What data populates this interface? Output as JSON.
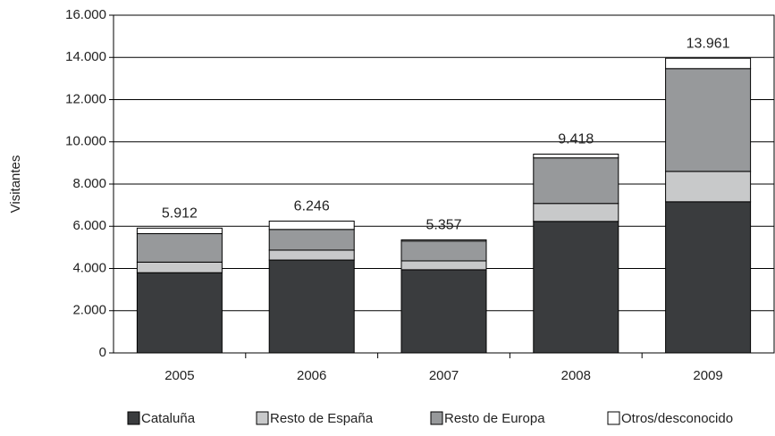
{
  "chart_data": {
    "type": "stacked_bar",
    "y_label": "Visitantes",
    "categories": [
      "2005",
      "2006",
      "2007",
      "2008",
      "2009"
    ],
    "series": [
      {
        "name": "Cataluña",
        "color": "#3a3c3e",
        "values": [
          3800,
          4400,
          3940,
          6230,
          7160
        ]
      },
      {
        "name": "Resto de España",
        "color": "#c8c9ca",
        "values": [
          500,
          470,
          420,
          850,
          1440
        ]
      },
      {
        "name": "Resto de Europa",
        "color": "#97999b",
        "values": [
          1350,
          980,
          940,
          2160,
          4870
        ]
      },
      {
        "name": "Otros/desconocido",
        "color": "#ffffff",
        "values": [
          262,
          396,
          57,
          178,
          491
        ]
      }
    ],
    "totals": {
      "values": [
        5912,
        6246,
        5357,
        9418,
        13961
      ],
      "value_labels": [
        "5.912",
        "6.246",
        "5.357",
        "9.418",
        "13.961"
      ]
    },
    "ylim": [
      0,
      16000
    ],
    "yticks": [
      0,
      {
        "value": 2000,
        "label": "2.000"
      },
      {
        "value": 4000,
        "label": "4.000"
      },
      {
        "value": 6000,
        "label": "6.000"
      },
      {
        "value": 8000,
        "label": "8.000"
      },
      {
        "value": 10000,
        "label": "10.000"
      },
      {
        "value": 12000,
        "label": "12.000"
      },
      {
        "value": 14000,
        "label": "14.000"
      },
      {
        "value": 16000,
        "label": "16.000"
      }
    ],
    "grid": true
  }
}
